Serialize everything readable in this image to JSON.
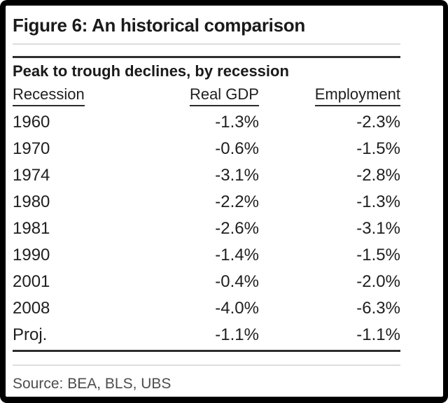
{
  "figure": {
    "title": "Figure 6: An historical comparison",
    "caption": "Peak to trough declines, by recession",
    "source": "Source: BEA, BLS, UBS"
  },
  "table": {
    "columns": [
      "Recession",
      "Real GDP",
      "Employment"
    ],
    "rows": [
      {
        "recession": "1960",
        "real_gdp": "-1.3%",
        "employment": "-2.3%"
      },
      {
        "recession": "1970",
        "real_gdp": "-0.6%",
        "employment": "-1.5%"
      },
      {
        "recession": "1974",
        "real_gdp": "-3.1%",
        "employment": "-2.8%"
      },
      {
        "recession": "1980",
        "real_gdp": "-2.2%",
        "employment": "-1.3%"
      },
      {
        "recession": "1981",
        "real_gdp": "-2.6%",
        "employment": "-3.1%"
      },
      {
        "recession": "1990",
        "real_gdp": "-1.4%",
        "employment": "-1.5%"
      },
      {
        "recession": "2001",
        "real_gdp": "-0.4%",
        "employment": "-2.0%"
      },
      {
        "recession": "2008",
        "real_gdp": "-4.0%",
        "employment": "-6.3%"
      },
      {
        "recession": "Proj.",
        "real_gdp": "-1.1%",
        "employment": "-1.1%"
      }
    ]
  },
  "colors": {
    "frame_border": "#000000",
    "text": "#1f1f1f",
    "source_text": "#4d4d4d",
    "rule_dark": "#2e2e2e",
    "rule_light": "#dcdcdc",
    "background": "#ffffff"
  },
  "chart_data": {
    "type": "table",
    "title": "Figure 6: An historical comparison",
    "subtitle": "Peak to trough declines, by recession",
    "columns": [
      "Recession",
      "Real GDP",
      "Employment"
    ],
    "categories": [
      "1960",
      "1970",
      "1974",
      "1980",
      "1981",
      "1990",
      "2001",
      "2008",
      "Proj."
    ],
    "series": [
      {
        "name": "Real GDP",
        "unit": "%",
        "values": [
          -1.3,
          -0.6,
          -3.1,
          -2.2,
          -2.6,
          -1.4,
          -0.4,
          -4.0,
          -1.1
        ]
      },
      {
        "name": "Employment",
        "unit": "%",
        "values": [
          -2.3,
          -1.5,
          -2.8,
          -1.3,
          -3.1,
          -1.5,
          -2.0,
          -6.3,
          -1.1
        ]
      }
    ],
    "source": "Source: BEA, BLS, UBS"
  }
}
